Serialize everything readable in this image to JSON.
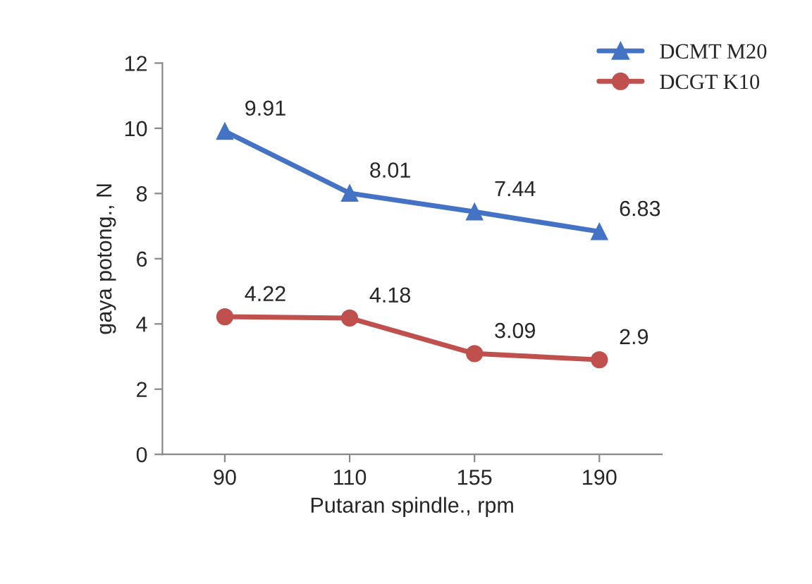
{
  "chart_data": {
    "type": "line",
    "xlabel": "Putaran spindle., rpm",
    "ylabel": "gaya potong., N",
    "categories": [
      "90",
      "110",
      "155",
      "190"
    ],
    "series": [
      {
        "name": "DCMT M20",
        "color": "#4472c4",
        "marker": "triangle",
        "values": [
          9.91,
          8.01,
          7.44,
          6.83
        ]
      },
      {
        "name": "DCGT K10",
        "color": "#c0504d",
        "marker": "circle",
        "values": [
          4.22,
          4.18,
          3.09,
          2.9
        ]
      }
    ],
    "ylim": [
      0,
      12
    ],
    "yticks": [
      0,
      2,
      4,
      6,
      8,
      10,
      12
    ],
    "grid": false,
    "legend": "top right",
    "data_labels": true,
    "line_style": "solid"
  }
}
